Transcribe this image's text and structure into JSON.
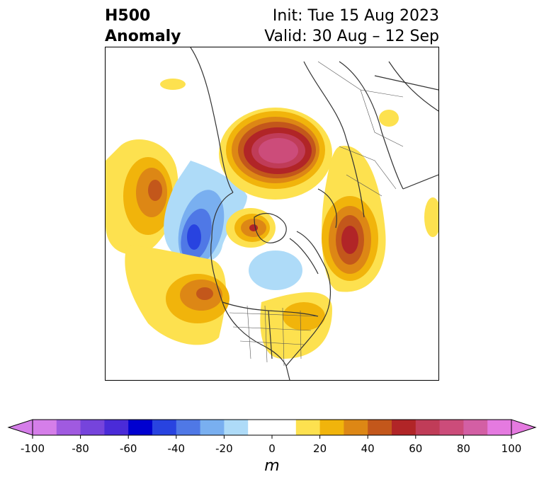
{
  "header": {
    "title_line1": "H500",
    "title_line2": "Anomaly",
    "init": "Init: Tue 15 Aug 2023",
    "valid": "Valid: 30 Aug – 12 Sep"
  },
  "map": {
    "projection": "north-polar-stereographic",
    "region": "Northern Hemisphere / North America",
    "features": [
      "coastlines",
      "country-borders",
      "us-state-borders"
    ],
    "anomaly_centers": [
      {
        "region": "Arctic / Siberia",
        "sign": "positive",
        "peak_m": 85
      },
      {
        "region": "North Pacific",
        "sign": "positive",
        "peak_m": 50
      },
      {
        "region": "Gulf of Alaska / Bering",
        "sign": "negative",
        "peak_m": -60
      },
      {
        "region": "Canadian Archipelago",
        "sign": "positive",
        "peak_m": 55
      },
      {
        "region": "Hudson Bay",
        "sign": "negative",
        "peak_m": -20
      },
      {
        "region": "Northeast Pacific off US West Coast",
        "sign": "positive",
        "peak_m": 50
      },
      {
        "region": "Central / Eastern US",
        "sign": "positive",
        "peak_m": 20
      },
      {
        "region": "Europe / Scandinavia",
        "sign": "positive",
        "peak_m": 60
      },
      {
        "region": "Siberia",
        "sign": "positive",
        "peak_m": 20
      }
    ]
  },
  "colorbar": {
    "unit": "m",
    "ticks": [
      "-100",
      "-80",
      "-60",
      "-40",
      "-20",
      "0",
      "20",
      "40",
      "60",
      "80",
      "100"
    ],
    "colors": [
      "#d57ee9",
      "#a05ae0",
      "#7644dc",
      "#4a2bd8",
      "#0000d0",
      "#2843e0",
      "#4f78e6",
      "#79aff0",
      "#aedbf8",
      "#ffffff",
      "#ffffff",
      "#fde14f",
      "#f1b40b",
      "#dd8715",
      "#c3571b",
      "#b12527",
      "#c03c58",
      "#cc4c7a",
      "#d35fa4",
      "#e57ae0"
    ],
    "range": [
      -100,
      100
    ],
    "step": 10
  }
}
